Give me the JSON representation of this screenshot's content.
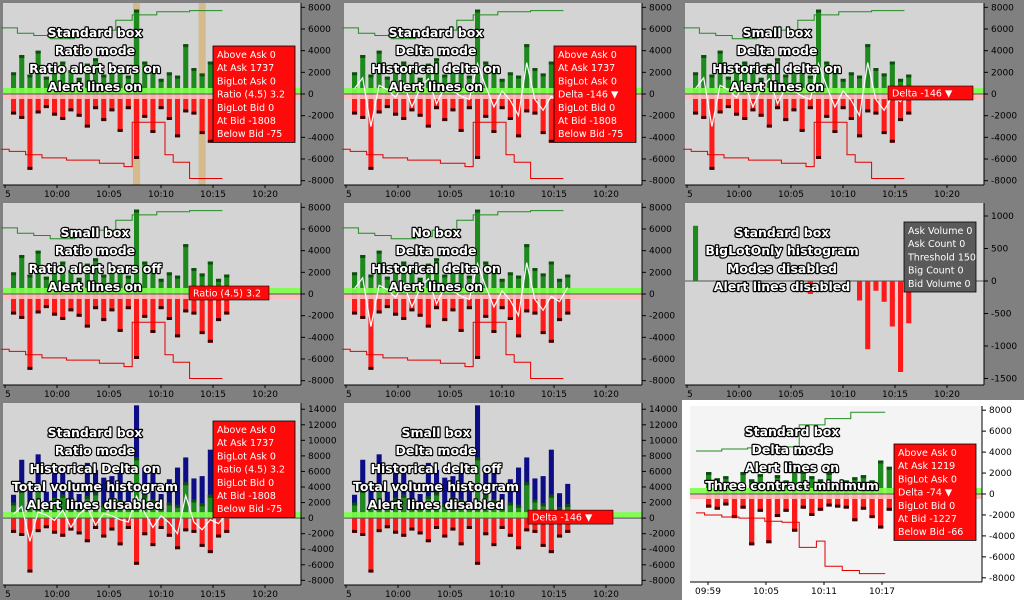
{
  "chart_data": [
    {
      "type": "bar",
      "panel": "p1",
      "bg": "#d4d4d4",
      "scale": "delta",
      "yticks": [
        8000,
        6000,
        4000,
        2000,
        0,
        -2000,
        -4000,
        -6000,
        -8000
      ],
      "ylim": [
        -8400,
        8400
      ],
      "xticks": [
        "5",
        "10:00",
        "10:05",
        "10:10",
        "10:15",
        "10:20"
      ],
      "overlay": [
        "Standard box",
        "Ratio mode",
        "Ratio alert bars on",
        "Alert lines on"
      ],
      "ratio_alert_bars": true,
      "historical_delta": false,
      "volume_histogram": false,
      "alert_lines": true,
      "box": {
        "style": "standard",
        "rows": [
          "Above Ask  0",
          "At Ask  1737",
          "BigLot Ask  0",
          "Ratio (4.5)  3.2",
          "BigLot Bid  0",
          "At Bid  -1808",
          "Below Bid  -75"
        ]
      }
    },
    {
      "type": "bar",
      "panel": "p2",
      "bg": "#d4d4d4",
      "scale": "delta",
      "yticks": [
        8000,
        6000,
        4000,
        2000,
        0,
        -2000,
        -4000,
        -6000,
        -8000
      ],
      "ylim": [
        -8400,
        8400
      ],
      "xticks": [
        "5",
        "10:00",
        "10:05",
        "10:10",
        "10:15",
        "10:20"
      ],
      "overlay": [
        "Standard box",
        "Delta mode",
        "Historical delta on",
        "Alert lines on"
      ],
      "ratio_alert_bars": false,
      "historical_delta": true,
      "volume_histogram": false,
      "alert_lines": true,
      "box": {
        "style": "standard",
        "rows": [
          "Above Ask  0",
          "At Ask  1737",
          "BigLot Ask  0",
          "Delta  -146  ▼",
          "BigLot Bid  0",
          "At Bid  -1808",
          "Below Bid  -75"
        ]
      }
    },
    {
      "type": "bar",
      "panel": "p3",
      "bg": "#d4d4d4",
      "scale": "delta",
      "yticks": [
        8000,
        6000,
        4000,
        2000,
        0,
        -2000,
        -4000,
        -6000,
        -8000
      ],
      "ylim": [
        -8400,
        8400
      ],
      "xticks": [
        "5",
        "10:00",
        "10:05",
        "10:10",
        "10:15",
        "10:20"
      ],
      "overlay": [
        "Small box",
        "Delta mode",
        "Historical delta on",
        "Alert lines on"
      ],
      "ratio_alert_bars": false,
      "historical_delta": true,
      "volume_histogram": false,
      "alert_lines": true,
      "box": {
        "style": "small",
        "rows": [
          "Delta  -146  ▼"
        ]
      }
    },
    {
      "type": "bar",
      "panel": "p4",
      "bg": "#d4d4d4",
      "scale": "delta",
      "yticks": [
        8000,
        6000,
        4000,
        2000,
        0,
        -2000,
        -4000,
        -6000,
        -8000
      ],
      "ylim": [
        -8400,
        8400
      ],
      "xticks": [
        "5",
        "10:00",
        "10:05",
        "10:10",
        "10:15",
        "10:20"
      ],
      "overlay": [
        "Small box",
        "Ratio mode",
        "Ratio alert bars off",
        "Alert lines on"
      ],
      "ratio_alert_bars": false,
      "historical_delta": false,
      "volume_histogram": false,
      "alert_lines": true,
      "box": {
        "style": "small",
        "rows": [
          "Ratio (4.5)  3.2"
        ]
      }
    },
    {
      "type": "bar",
      "panel": "p5",
      "bg": "#d4d4d4",
      "scale": "delta",
      "yticks": [
        8000,
        6000,
        4000,
        2000,
        0,
        -2000,
        -4000,
        -6000,
        -8000
      ],
      "ylim": [
        -8400,
        8400
      ],
      "xticks": [
        "5",
        "10:00",
        "10:05",
        "10:10",
        "10:15",
        "10:20"
      ],
      "overlay": [
        "No box",
        "Delta mode",
        "Historical delta on",
        "Alert lines on"
      ],
      "ratio_alert_bars": false,
      "historical_delta": true,
      "volume_histogram": false,
      "alert_lines": true,
      "box": null
    },
    {
      "type": "bar",
      "panel": "p6",
      "bg": "#d4d4d4",
      "scale": "biglot",
      "yticks": [
        1000,
        500,
        0,
        -500,
        -1000,
        -1500
      ],
      "ylim": [
        -1600,
        1200
      ],
      "xticks": [
        "5",
        "10:00",
        "10:05",
        "10:10",
        "10:15",
        "10:20"
      ],
      "overlay": [
        "Standard box",
        "BigLotOnly histogram",
        "Modes disabled",
        "Alert lines disabled"
      ],
      "ratio_alert_bars": false,
      "historical_delta": false,
      "volume_histogram": false,
      "alert_lines": false,
      "box": {
        "style": "gray",
        "rows": [
          "Ask Volume  0",
          "Ask Count  0",
          "Threshold  150",
          "Big Count  0",
          "Bid Volume  0"
        ]
      }
    },
    {
      "type": "bar",
      "panel": "p7",
      "bg": "#d4d4d4",
      "scale": "volume",
      "yticks": [
        14000,
        12000,
        10000,
        8000,
        6000,
        4000,
        2000,
        0,
        -2000,
        -4000,
        -6000,
        -8000
      ],
      "ylim": [
        -8600,
        14800
      ],
      "xticks": [
        "5",
        "10:00",
        "10:05",
        "10:10",
        "10:15",
        "10:20"
      ],
      "overlay": [
        "Standard box",
        "Ratio mode",
        "Historical Delta on",
        "Total volume histogram",
        "Alert lines disabled"
      ],
      "ratio_alert_bars": false,
      "historical_delta": true,
      "volume_histogram": true,
      "alert_lines": false,
      "box": {
        "style": "standard",
        "rows": [
          "Above Ask  0",
          "At Ask  1737",
          "BigLot Ask  0",
          "Ratio (4.5)  3.2",
          "BigLot Bid  0",
          "At Bid  -1808",
          "Below Bid  -75"
        ]
      }
    },
    {
      "type": "bar",
      "panel": "p8",
      "bg": "#d4d4d4",
      "scale": "volume",
      "yticks": [
        14000,
        12000,
        10000,
        8000,
        6000,
        4000,
        2000,
        0,
        -2000,
        -4000,
        -6000,
        -8000
      ],
      "ylim": [
        -8600,
        14800
      ],
      "xticks": [
        "5",
        "10:00",
        "10:05",
        "10:10",
        "10:15",
        "10:20"
      ],
      "overlay": [
        "Small box",
        "Delta mode",
        "Historical delta off",
        "Total volume histogram",
        "Alert lines disabled"
      ],
      "ratio_alert_bars": false,
      "historical_delta": false,
      "volume_histogram": true,
      "alert_lines": false,
      "box": {
        "style": "small",
        "rows": [
          "Delta  -146  ▼"
        ]
      }
    },
    {
      "type": "bar",
      "panel": "p9",
      "bg": "#f4f4f4",
      "scale": "three",
      "yticks": [
        8000,
        6000,
        4000,
        2000,
        0,
        -2000,
        -4000,
        -6000,
        -8000
      ],
      "ylim": [
        -8400,
        8400
      ],
      "xticks": [
        "09:59",
        "10:05",
        "10:11",
        "10:17"
      ],
      "overlay": [
        "Standard box",
        "Delta mode",
        "Alert lines on",
        "Three contract minimum"
      ],
      "ratio_alert_bars": false,
      "historical_delta": false,
      "volume_histogram": false,
      "alert_lines": true,
      "box": {
        "style": "standard",
        "rows": [
          "Above Ask  0",
          "At Ask  1219",
          "BigLot Ask  0",
          "Delta  -74  ▼",
          "BigLot Bid  0",
          "At Bid  -1227",
          "Below Bid  -66"
        ]
      }
    }
  ],
  "series_main": {
    "ask": [
      2000,
      3600,
      1800,
      4000,
      1600,
      2600,
      3000,
      2200,
      1500,
      2800,
      3300,
      1800,
      2600,
      2400,
      1700,
      7800,
      3000,
      2400,
      1400,
      2000,
      1700,
      4600,
      2400,
      1900,
      3000,
      1400,
      1800
    ],
    "bid": [
      -1900,
      -2300,
      -7000,
      -1800,
      -1300,
      -2000,
      -2400,
      -1600,
      -2100,
      -3100,
      -1400,
      -2500,
      -1600,
      -3500,
      -1400,
      -6000,
      -2200,
      -3600,
      -1400,
      -2400,
      -4000,
      -1700,
      -1900,
      -3700,
      -4500,
      -2500,
      -1900
    ],
    "volume": [
      3000,
      7500,
      4200,
      8200,
      3400,
      5800,
      6800,
      4600,
      3100,
      7100,
      6200,
      5200,
      5400,
      6500,
      4400,
      14500,
      6500,
      5900,
      3100,
      5000,
      6500,
      7800,
      5100,
      5400,
      8800,
      3200,
      4400
    ],
    "hist": [
      500,
      1500,
      -3000,
      800,
      400,
      -300,
      1000,
      -1200,
      500,
      1400,
      -900,
      600,
      300,
      -200,
      -500,
      2800,
      700,
      -1200,
      300,
      -600,
      -2000,
      2900,
      -500,
      -1500,
      -200,
      -700,
      600
    ]
  },
  "series_biglot": {
    "values": [
      850,
      0,
      0,
      0,
      0,
      0,
      0,
      0,
      0,
      0,
      0,
      0,
      0,
      0,
      -200,
      0,
      0,
      0,
      0,
      0,
      -300,
      -1050,
      -150,
      -320,
      -700,
      -1400,
      -650
    ]
  },
  "series_three": {
    "ask": [
      2100,
      1500,
      1700,
      1100,
      2100,
      1400,
      1900,
      1000,
      1800,
      1300,
      2300,
      2200,
      1700,
      1400,
      2100,
      1000,
      1300,
      1600,
      1800,
      1300,
      3200,
      2600
    ],
    "bid": [
      -1300,
      -1500,
      -1100,
      -2300,
      -1400,
      -4900,
      -1700,
      -4700,
      -2200,
      -1700,
      -3600,
      -1400,
      -2100,
      -1600,
      -1200,
      -1300,
      -1400,
      -2600,
      -1500,
      -2300,
      -3300,
      -1600
    ]
  },
  "alert_lines": {
    "main_upper": [
      6100,
      6100,
      5600,
      5600,
      5400,
      5400,
      5100,
      5100,
      5100,
      5300,
      5300,
      5900,
      5900,
      5900,
      6800,
      6800,
      7300,
      7300,
      7300,
      7600,
      7600,
      7600,
      7600,
      7700,
      7700,
      7700,
      7700
    ],
    "main_lower": [
      -5100,
      -5300,
      -5300,
      -5600,
      -5600,
      -5900,
      -5900,
      -5900,
      -6100,
      -6100,
      -6100,
      -6100,
      -6400,
      -6400,
      -6400,
      -6700,
      -2600,
      -2600,
      -2600,
      -2600,
      -5600,
      -6300,
      -6300,
      -7800,
      -7800,
      -7800,
      -7800
    ],
    "three_upper": [
      4100,
      4100,
      4100,
      4300,
      4300,
      4300,
      4400,
      4400,
      4500,
      4500,
      4500,
      4500,
      6600,
      6600,
      6600,
      7200,
      7200,
      7200,
      7800,
      7800,
      7800,
      7800
    ],
    "three_lower": [
      -1800,
      -2000,
      -2000,
      -2200,
      -2200,
      -2300,
      -2300,
      -2300,
      -2600,
      -2600,
      -2700,
      -2700,
      -5100,
      -5100,
      -4500,
      -6900,
      -6900,
      -7300,
      -7300,
      -7600,
      -7600,
      -7600
    ]
  },
  "colors": {
    "ask": "#1e8a1e",
    "ask_dark": "#0d4d0d",
    "bid": "#ff1a1a",
    "bid_dark": "#3a0000",
    "volume": "#0d0d85",
    "upper_line": "#228b22",
    "lower_line": "#e00000",
    "zero_green": "#7cff4a",
    "zero_pink": "#ffbcbc",
    "box_red": "#ff0a0a",
    "box_gray": "#5a5a5a",
    "ratio_bar": "#d4b580"
  }
}
